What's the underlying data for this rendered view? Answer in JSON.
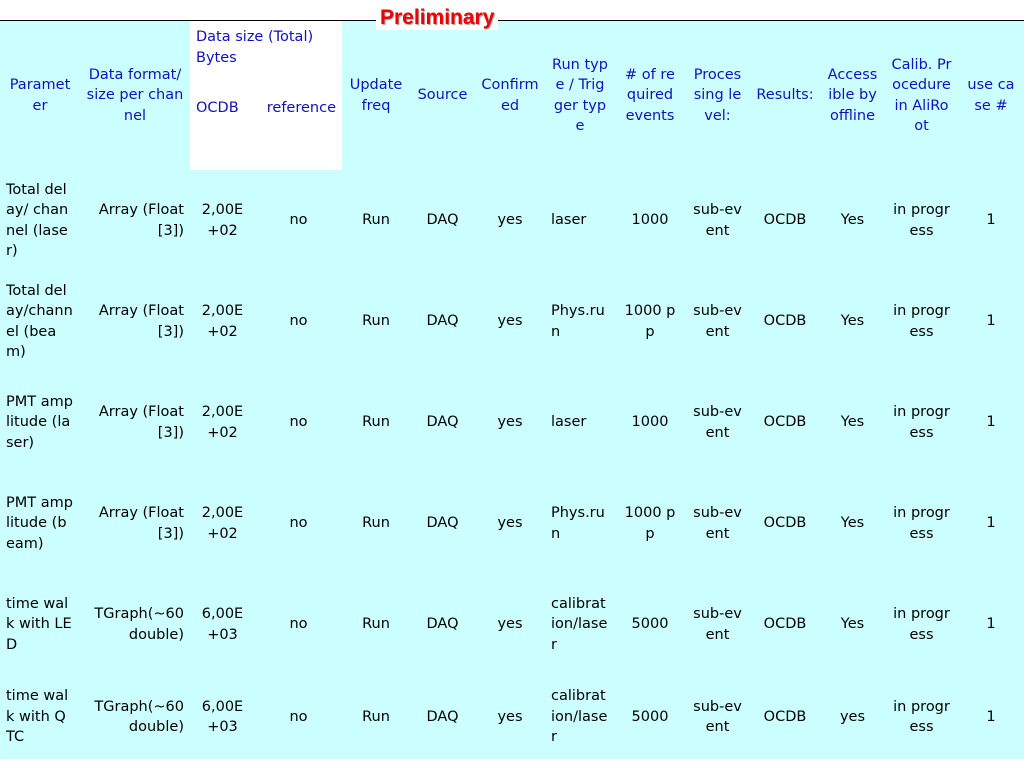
{
  "title": "Preliminary",
  "table": {
    "header": [
      "Parameter",
      "Data format/size per channel",
      "Data size (Total) Bytes",
      "Update freq",
      "Source",
      "Confirmed",
      "Run type / Trigger type",
      "# of required events",
      "Processing level:",
      "Results:",
      "Accessible by offline",
      "Calib. Procedure in AliRoot",
      "use case #"
    ],
    "subheader": [
      "OCDB",
      "reference"
    ],
    "rows": [
      [
        "Total delay/ channel (laser)",
        "Array (Float[3])",
        "2,00E+02",
        "no",
        "Run",
        "DAQ",
        "yes",
        "laser",
        "1000",
        "sub-event",
        "OCDB",
        "Yes",
        "in progress",
        "1"
      ],
      [
        "Total delay/channel (beam)",
        "Array (Float[3])",
        "2,00E+02",
        "no",
        "Run",
        "DAQ",
        "yes",
        "Phys.run",
        "1000 pp",
        "sub-event",
        "OCDB",
        "Yes",
        "in progress",
        "1"
      ],
      [
        "PMT amplitude (laser)",
        "Array (Float[3])",
        "2,00E+02",
        "no",
        "Run",
        "DAQ",
        "yes",
        "laser",
        "1000",
        "sub-event",
        "OCDB",
        "Yes",
        "in progress",
        "1"
      ],
      [
        "PMT amplitude (beam)",
        "Array (Float[3])",
        "2,00E+02",
        "no",
        "Run",
        "DAQ",
        "yes",
        "Phys.run",
        "1000 pp",
        "sub-event",
        "OCDB",
        "Yes",
        "in progress",
        "1"
      ],
      [
        "time walk with LED",
        "TGraph(~60double)",
        "6,00E+03",
        "no",
        "Run",
        "DAQ",
        "yes",
        "calibration/laser",
        "5000",
        "sub-event",
        "OCDB",
        "Yes",
        "in progress",
        "1"
      ],
      [
        "time walk with QTC",
        "TGraph(~60double)",
        "6,00E+03",
        "no",
        "Run",
        "DAQ",
        "yes",
        "calibration/laser",
        "5000",
        "sub-event",
        "OCDB",
        "yes",
        "in progress",
        "1"
      ]
    ]
  }
}
